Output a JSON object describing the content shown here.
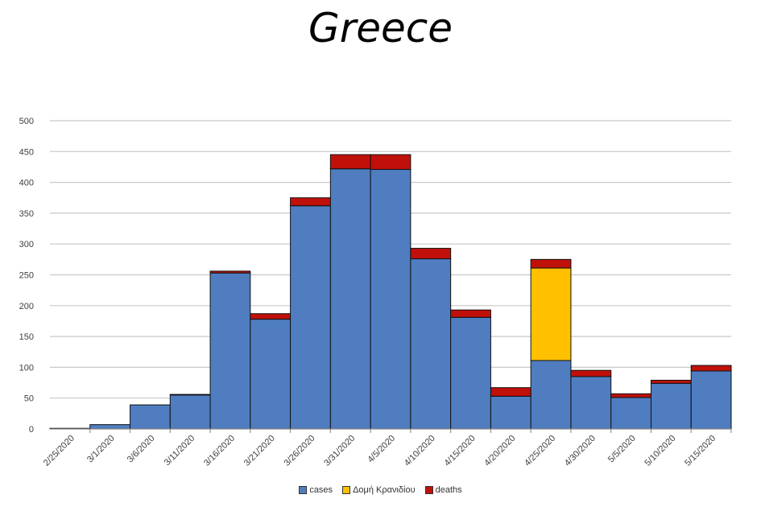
{
  "chart_data": {
    "type": "bar",
    "stacked": true,
    "title": "Greece",
    "xlabel": "",
    "ylabel": "",
    "ylim": [
      0,
      500
    ],
    "yticks": [
      0,
      50,
      100,
      150,
      200,
      250,
      300,
      350,
      400,
      450,
      500
    ],
    "grid": true,
    "legend_position": "bottom",
    "categories": [
      "2/25/2020",
      "3/1/2020",
      "3/6/2020",
      "3/11/2020",
      "3/16/2020",
      "3/21/2020",
      "3/26/2020",
      "3/31/2020",
      "4/5/2020",
      "4/10/2020",
      "4/15/2020",
      "4/20/2020",
      "4/25/2020",
      "4/30/2020",
      "5/5/2020",
      "5/10/2020",
      "5/15/2020"
    ],
    "series": [
      {
        "name": "cases",
        "color": "#4f7dc0",
        "values": [
          1,
          7,
          39,
          55,
          253,
          178,
          362,
          422,
          421,
          276,
          181,
          53,
          111,
          85,
          51,
          74,
          94
        ]
      },
      {
        "name": "Δομή Κρανιδίου",
        "color": "#ffc000",
        "values": [
          0,
          0,
          0,
          0,
          0,
          0,
          0,
          0,
          0,
          0,
          0,
          0,
          150,
          0,
          0,
          0,
          0
        ]
      },
      {
        "name": "deaths",
        "color": "#c0100a",
        "values": [
          0,
          0,
          0,
          1,
          3,
          9,
          13,
          23,
          24,
          17,
          12,
          14,
          14,
          10,
          6,
          5,
          9
        ]
      }
    ]
  }
}
